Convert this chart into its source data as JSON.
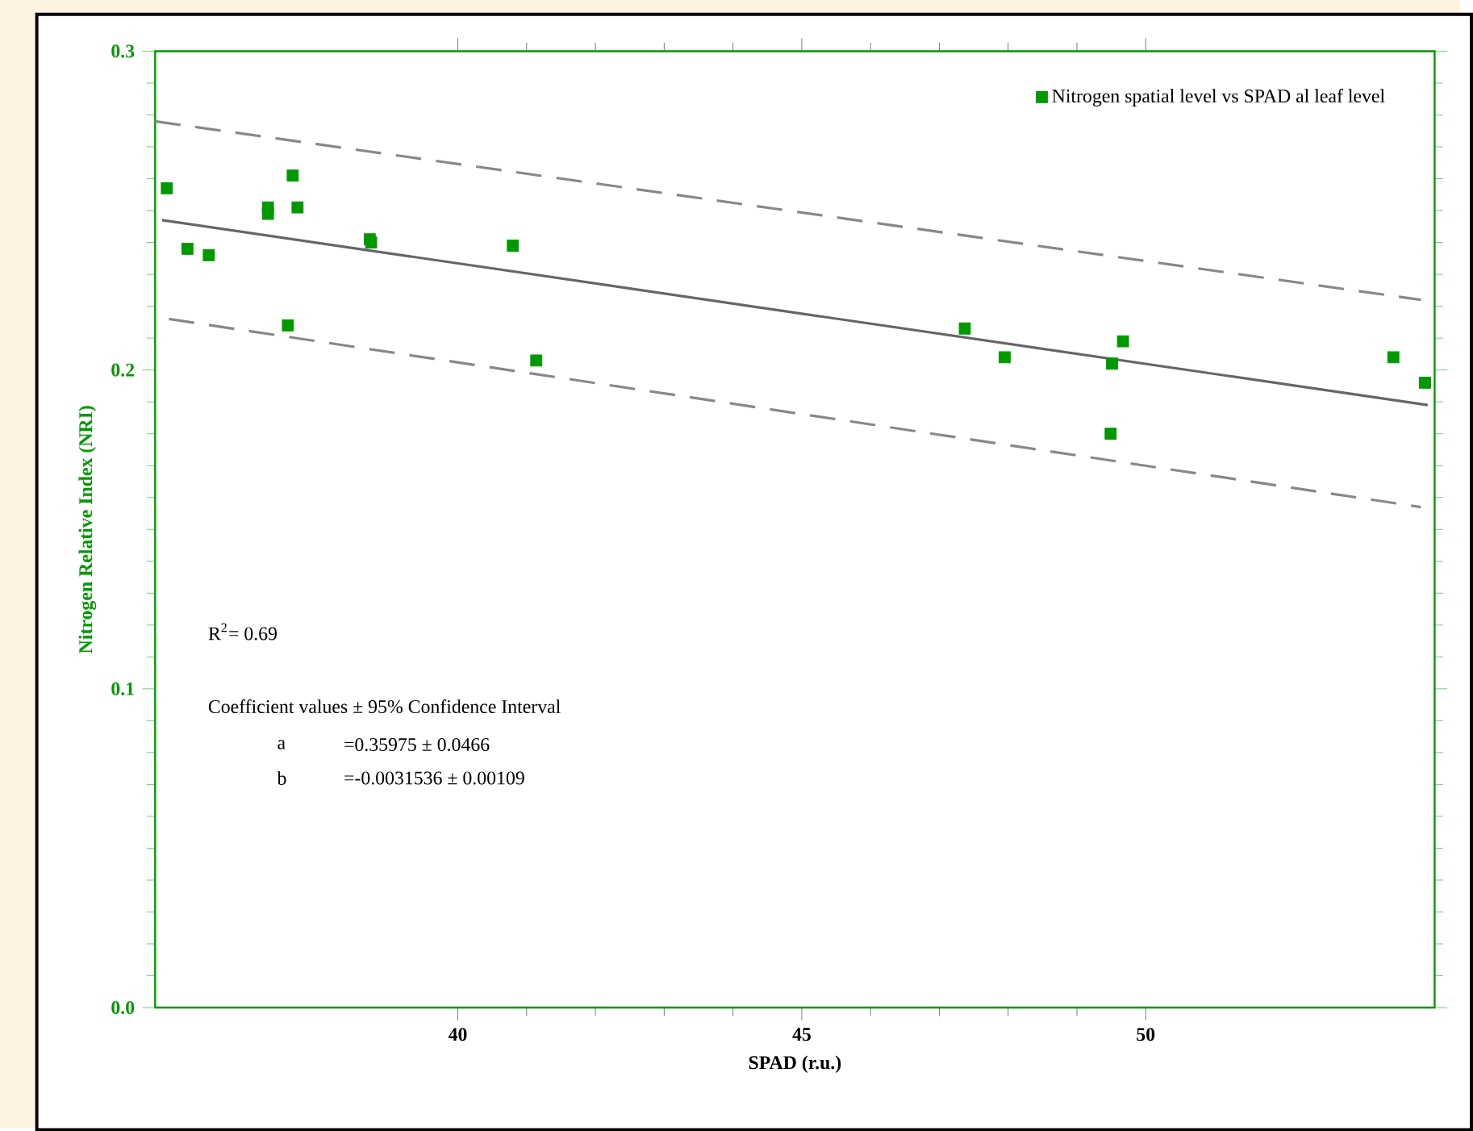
{
  "chart_data": {
    "type": "scatter",
    "xlabel": "SPAD (r.u.)",
    "ylabel": "Nitrogen Relative Index (NRI)",
    "xlim": [
      35.6,
      54.2
    ],
    "ylim": [
      0,
      0.3
    ],
    "xticks": [
      40,
      45,
      50
    ],
    "yticks": [
      {
        "value": 0,
        "label": "0.0"
      },
      0.1,
      0.2,
      0.3
    ],
    "legend": "top right",
    "grid": false,
    "series": [
      {
        "name": "Nitrogen spatial level vs SPAD al leaf level",
        "marker": "square",
        "color": "#009900",
        "x": [
          35.77,
          36.07,
          36.38,
          37.24,
          37.24,
          37.6,
          37.67,
          37.53,
          38.72,
          38.74,
          40.8,
          41.14,
          47.37,
          47.95,
          49.49,
          49.51,
          49.67,
          53.6,
          54.06
        ],
        "values": [
          0.257,
          0.238,
          0.236,
          0.251,
          0.249,
          0.261,
          0.251,
          0.214,
          0.241,
          0.24,
          0.239,
          0.203,
          0.213,
          0.204,
          0.18,
          0.202,
          0.209,
          0.204,
          0.196
        ]
      },
      {
        "type": "line",
        "marker": "none",
        "color": "#666666",
        "line_style": "solid",
        "x": [
          35.7,
          54.1
        ],
        "values": [
          0.247,
          0.189
        ]
      },
      {
        "type": "line",
        "marker": "none",
        "color": "#888888",
        "line_style": "dashed",
        "x": [
          35.6,
          54.0
        ],
        "values": [
          0.278,
          0.222
        ]
      },
      {
        "type": "line",
        "marker": "none",
        "color": "#888888",
        "line_style": "dashed",
        "x": [
          35.8,
          54.0
        ],
        "values": [
          0.216,
          0.157
        ]
      }
    ],
    "annotations": [
      "R$^{2}$= 0.69",
      "Coefficient values ± 95% Confidence Interval",
      "a",
      "=0.35975 ± 0.0466",
      "b",
      "=-0.0031536 ± 0.00109"
    ]
  }
}
